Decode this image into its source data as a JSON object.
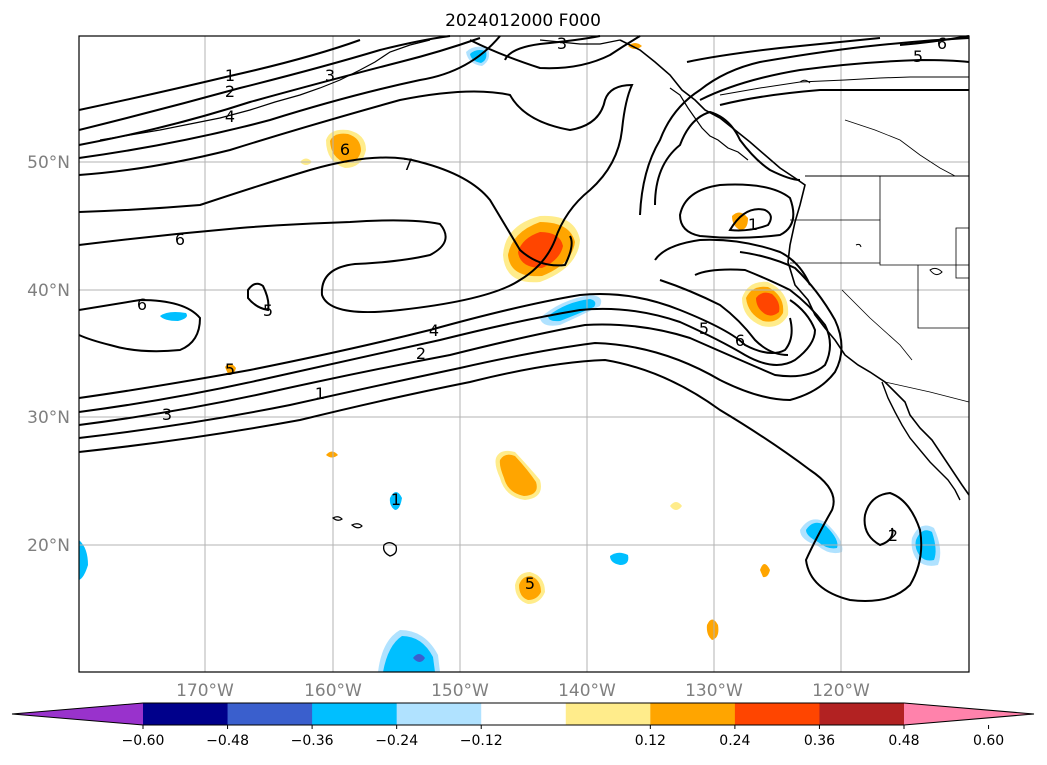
{
  "map": {
    "title": "2024012000 F000",
    "lat_labels": [
      "50°N",
      "40°N",
      "30°N",
      "20°N"
    ],
    "lon_labels": [
      "170°W",
      "160°W",
      "150°W",
      "140°W",
      "130°W",
      "120°W"
    ],
    "contour_labels": [
      "1",
      "2",
      "3",
      "3",
      "4",
      "5",
      "5",
      "6",
      "6",
      "6",
      "7",
      "4",
      "2",
      "1",
      "3",
      "5",
      "5",
      "6",
      "1",
      "2",
      "5",
      "6",
      "1"
    ],
    "colorbar": {
      "tick_labels": [
        "−0.60",
        "−0.48",
        "−0.36",
        "−0.24",
        "−0.12",
        "0.12",
        "0.24",
        "0.36",
        "0.48",
        "0.60"
      ],
      "colors": [
        "#9932cc",
        "#00008b",
        "#3a5fcd",
        "#00bfff",
        "#b0e2ff",
        "#ffffff",
        "#ffec8b",
        "#ffa500",
        "#ff4500",
        "#b22222",
        "#ff82ab"
      ]
    },
    "anomaly_colors": {
      "pos_light": "#ffec8b",
      "pos_mid": "#ffa500",
      "pos_strong": "#ff4500",
      "neg_light": "#b0e2ff",
      "neg_mid": "#00bfff",
      "neg_strong": "#3a5fcd",
      "neg_extreme": "#9932cc"
    }
  }
}
